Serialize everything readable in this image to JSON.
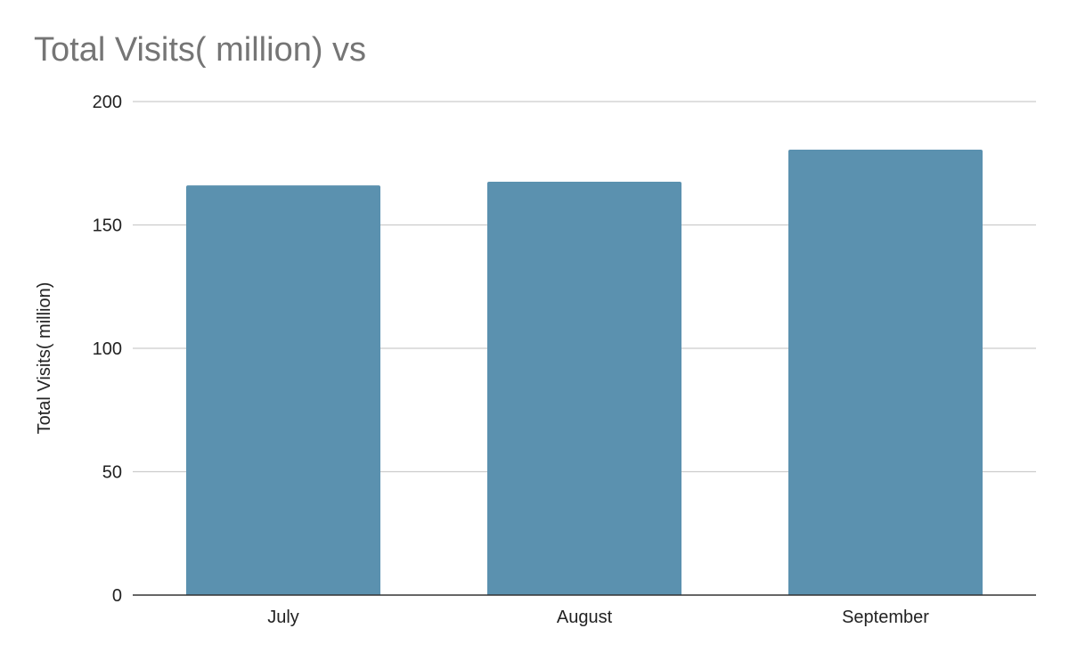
{
  "chart_data": {
    "type": "bar",
    "title": "Total Visits( million) vs",
    "xlabel": "",
    "ylabel": "Total Visits( million)",
    "categories": [
      "July",
      "August",
      "September"
    ],
    "series": [
      {
        "values": [
          166,
          167.5,
          180.5
        ],
        "color": "#5b91af"
      }
    ],
    "ylim": [
      0,
      200
    ],
    "yticks": [
      "0",
      "50",
      "100",
      "150",
      "200"
    ],
    "ytick_values": [
      0,
      50,
      100,
      150,
      200
    ],
    "grid": true,
    "legend": "none"
  }
}
